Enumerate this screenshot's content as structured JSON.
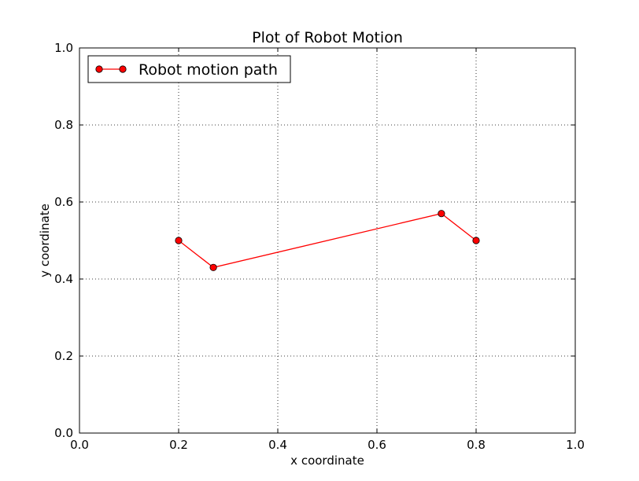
{
  "chart_data": {
    "type": "line",
    "title": "Plot of Robot Motion",
    "xlabel": "x coordinate",
    "ylabel": "y coordinate",
    "xlim": [
      0.0,
      1.0
    ],
    "ylim": [
      0.0,
      1.0
    ],
    "xticks": [
      0.0,
      0.2,
      0.4,
      0.6,
      0.8,
      1.0
    ],
    "yticks": [
      0.0,
      0.2,
      0.4,
      0.6,
      0.8,
      1.0
    ],
    "xtick_labels": [
      "0.0",
      "0.2",
      "0.4",
      "0.6",
      "0.8",
      "1.0"
    ],
    "ytick_labels": [
      "0.0",
      "0.2",
      "0.4",
      "0.6",
      "0.8",
      "1.0"
    ],
    "grid": true,
    "legend_position": "top-left",
    "series": [
      {
        "name": "Robot motion path",
        "color": "#ff0000",
        "marker": "circle",
        "x": [
          0.2,
          0.27,
          0.73,
          0.8
        ],
        "y": [
          0.5,
          0.43,
          0.57,
          0.5
        ]
      }
    ]
  }
}
